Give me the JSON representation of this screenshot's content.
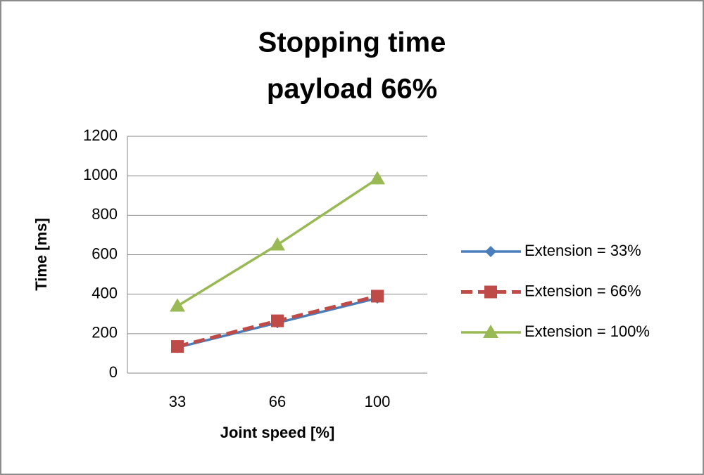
{
  "chart_data": {
    "type": "line",
    "title": "Stopping time",
    "subtitle": "payload 66%",
    "x_label": "Joint speed [%]",
    "y_label": "Time [ms]",
    "categories": [
      "33",
      "66",
      "100"
    ],
    "series": [
      {
        "name": "Extension = 33%",
        "color": "#4a7ebb",
        "marker": "diamond",
        "dash": false,
        "values": [
          130,
          255,
          380
        ]
      },
      {
        "name": "Extension = 66%",
        "color": "#be4b48",
        "marker": "square",
        "dash": true,
        "values": [
          135,
          265,
          390
        ]
      },
      {
        "name": "Extension = 100%",
        "color": "#98b954",
        "marker": "triangle",
        "dash": false,
        "values": [
          340,
          650,
          985
        ]
      }
    ],
    "ylim": [
      0,
      1200
    ],
    "yticks": [
      0,
      200,
      400,
      600,
      800,
      1000,
      1200
    ],
    "grid": true,
    "legend": "right"
  }
}
